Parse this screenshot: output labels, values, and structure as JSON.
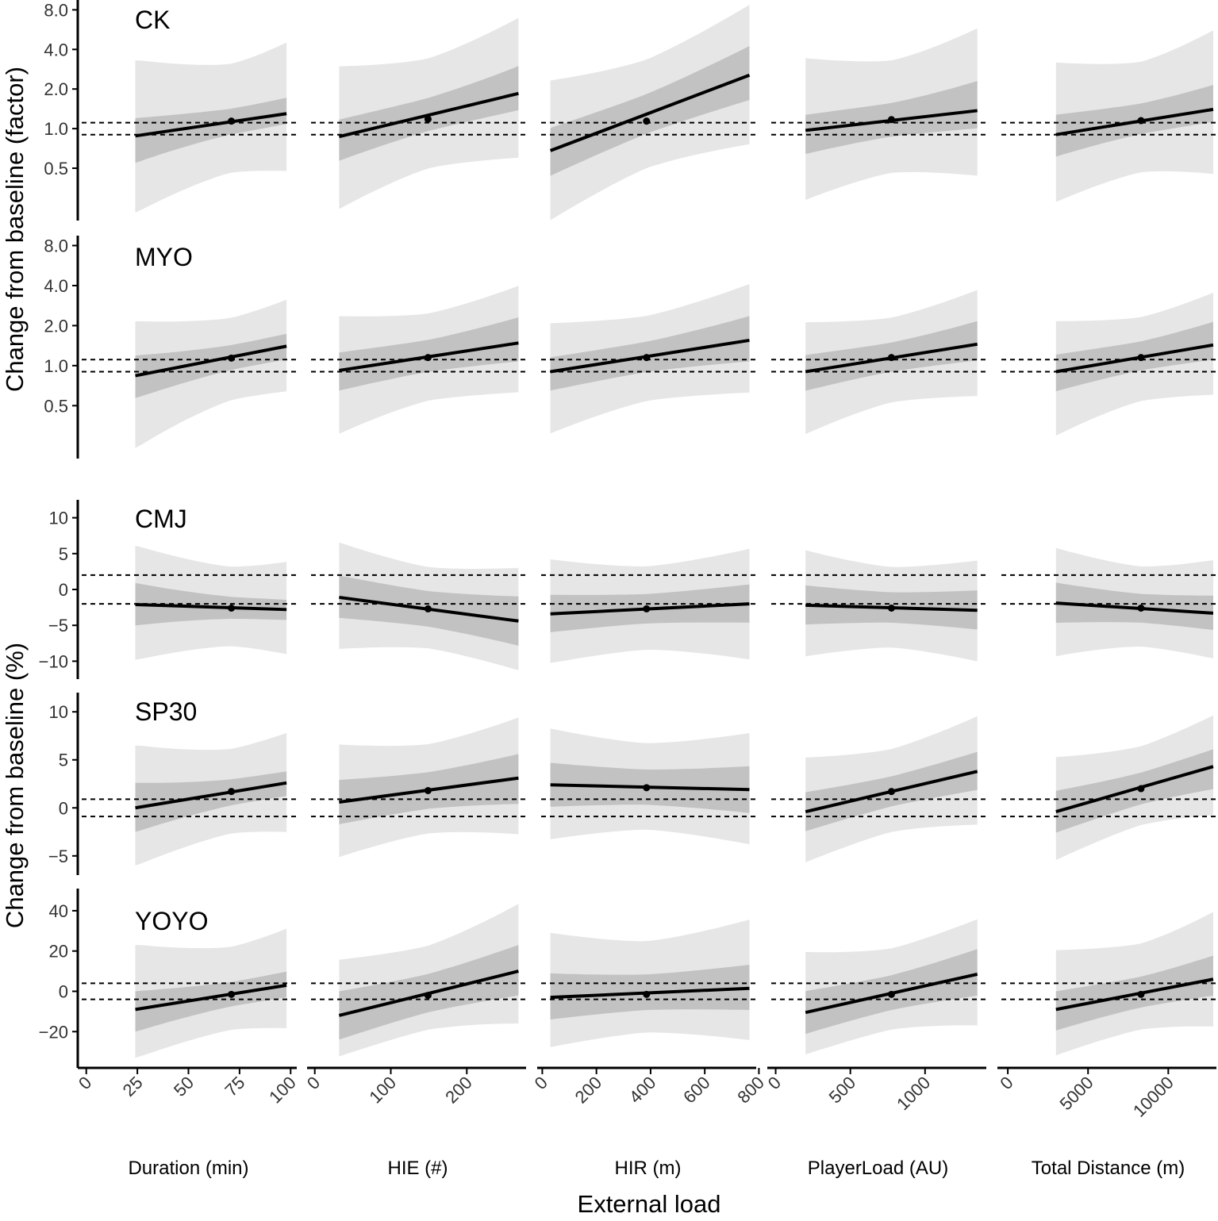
{
  "chart_data": {
    "type": "line",
    "layout": "faceted grid, 5 rows x 5 columns, shared y within row, shared x within column",
    "xlabel": "External load",
    "ylabel_groups": [
      {
        "label": "Change from baseline (factor)",
        "rows": [
          "CK",
          "MYO"
        ]
      },
      {
        "label": "Change from baseline (%)",
        "rows": [
          "CMJ",
          "SP30",
          "YOYO"
        ]
      }
    ],
    "columns": [
      {
        "label": "Duration (min)",
        "xlim": [
          -3,
          103
        ],
        "ticks": [
          0,
          25,
          50,
          75,
          100
        ],
        "tick_labels": [
          "0",
          "25",
          "50",
          "75",
          "100"
        ],
        "x_range": [
          24,
          98
        ],
        "x_point": 71
      },
      {
        "label": "HIE (#)",
        "xlim": [
          -7,
          278
        ],
        "ticks": [
          0,
          100,
          200
        ],
        "tick_labels": [
          "0",
          "100",
          "200"
        ],
        "x_range": [
          32,
          268
        ],
        "x_point": 149
      },
      {
        "label": "HIR (m)",
        "xlim": [
          -10,
          790
        ],
        "ticks": [
          0,
          200,
          400,
          600,
          800
        ],
        "tick_labels": [
          "0",
          "200",
          "400",
          "600",
          "800"
        ],
        "x_range": [
          30,
          765
        ],
        "x_point": 385
      },
      {
        "label": "PlayerLoad (AU)",
        "xlim": [
          -40,
          1410
        ],
        "ticks": [
          0,
          500,
          1000
        ],
        "tick_labels": [
          "0",
          "500",
          "1000"
        ],
        "x_range": [
          200,
          1350
        ],
        "x_point": 775
      },
      {
        "label": "Total Distance (m)",
        "xlim": [
          -500,
          13000
        ],
        "ticks": [
          0,
          5000,
          10000
        ],
        "tick_labels": [
          "0",
          "5000",
          "10000"
        ],
        "x_range": [
          3000,
          12800
        ],
        "x_point": 8300
      }
    ],
    "rows": [
      {
        "label": "CK",
        "scale": "log",
        "ylim": [
          0.2,
          9.5
        ],
        "ticks": [
          0.5,
          1.0,
          2.0,
          4.0,
          8.0
        ],
        "tick_labels": [
          "0.5",
          "1.0",
          "2.0",
          "4.0",
          "8.0"
        ],
        "reference_lines": [
          0.9,
          1.11
        ],
        "series": [
          {
            "column": "Duration (min)",
            "y_start": 0.88,
            "y_end": 1.3,
            "y_point": 1.14,
            "inner_start": [
              0.55,
              1.2
            ],
            "inner_end": [
              1.05,
              1.8
            ],
            "outer_start": [
              0.23,
              3.3
            ],
            "outer_end": [
              0.4,
              5.6
            ]
          },
          {
            "column": "HIE (#)",
            "y_start": 0.87,
            "y_end": 1.85,
            "y_point": 1.18,
            "inner_start": [
              0.55,
              1.2
            ],
            "inner_end": [
              1.35,
              3.1
            ],
            "outer_start": [
              0.22,
              3.3
            ],
            "outer_end": [
              0.55,
              7.7
            ]
          },
          {
            "column": "HIR (m)",
            "y_start": 0.68,
            "y_end": 2.55,
            "y_point": 1.14,
            "inner_start": [
              0.42,
              1.05
            ],
            "inner_end": [
              1.6,
              4.4
            ],
            "outer_start": [
              0.18,
              2.6
            ],
            "outer_end": [
              0.7,
              9.5
            ]
          },
          {
            "column": "PlayerLoad (AU)",
            "y_start": 0.97,
            "y_end": 1.37,
            "y_point": 1.17,
            "inner_start": [
              0.62,
              1.3
            ],
            "inner_end": [
              0.98,
              2.4
            ],
            "outer_start": [
              0.26,
              3.8
            ],
            "outer_end": [
              0.4,
              6.5
            ]
          },
          {
            "column": "Total Distance (m)",
            "y_start": 0.9,
            "y_end": 1.4,
            "y_point": 1.15,
            "inner_start": [
              0.6,
              1.3
            ],
            "inner_end": [
              1.1,
              2.25
            ],
            "outer_start": [
              0.26,
              3.4
            ],
            "outer_end": [
              0.4,
              6.5
            ]
          }
        ]
      },
      {
        "label": "MYO",
        "scale": "log",
        "ylim": [
          0.2,
          9.5
        ],
        "ticks": [
          0.5,
          1.0,
          2.0,
          4.0,
          8.0
        ],
        "tick_labels": [
          "0.5",
          "1.0",
          "2.0",
          "4.0",
          "8.0"
        ],
        "reference_lines": [
          0.9,
          1.11
        ],
        "series": [
          {
            "column": "Duration (min)",
            "y_start": 0.84,
            "y_end": 1.4,
            "y_point": 1.14,
            "inner_start": [
              0.57,
              1.19
            ],
            "inner_end": [
              1.07,
              1.8
            ],
            "outer_start": [
              0.24,
              2.15
            ],
            "outer_end": [
              0.56,
              3.6
            ]
          },
          {
            "column": "HIE (#)",
            "y_start": 0.92,
            "y_end": 1.48,
            "y_point": 1.15,
            "inner_start": [
              0.63,
              1.29
            ],
            "inner_end": [
              1.05,
              2.39
            ],
            "outer_start": [
              0.28,
              2.55
            ],
            "outer_end": [
              0.59,
              4.3
            ]
          },
          {
            "column": "HIR (m)",
            "y_start": 0.9,
            "y_end": 1.55,
            "y_point": 1.15,
            "inner_start": [
              0.63,
              1.18
            ],
            "inner_end": [
              1.05,
              2.43
            ],
            "outer_start": [
              0.28,
              2.25
            ],
            "outer_end": [
              0.59,
              4.4
            ]
          },
          {
            "column": "PlayerLoad (AU)",
            "y_start": 0.9,
            "y_end": 1.45,
            "y_point": 1.15,
            "inner_start": [
              0.63,
              1.23
            ],
            "inner_end": [
              1.07,
              2.23
            ],
            "outer_start": [
              0.28,
              2.27
            ],
            "outer_end": [
              0.55,
              4.0
            ]
          },
          {
            "column": "Total Distance (m)",
            "y_start": 0.9,
            "y_end": 1.43,
            "y_point": 1.15,
            "inner_start": [
              0.63,
              1.23
            ],
            "inner_end": [
              1.08,
              2.23
            ],
            "outer_start": [
              0.28,
              2.27
            ],
            "outer_end": [
              0.55,
              3.9
            ]
          }
        ]
      },
      {
        "label": "CMJ",
        "scale": "linear",
        "ylim": [
          -12.5,
          12.5
        ],
        "ticks": [
          -10,
          -5,
          0,
          5,
          10
        ],
        "tick_labels": [
          "−10",
          "−5",
          "0",
          "5",
          "10"
        ],
        "reference_lines": [
          -2,
          2
        ],
        "series": [
          {
            "column": "Duration (min)",
            "y_start": -2.1,
            "y_end": -2.8,
            "y_point": -2.6,
            "inner_start": [
              -5.0,
              0.9
            ],
            "inner_end": [
              -4.5,
              -1.2
            ],
            "outer_start": [
              -9.8,
              6.1
            ],
            "outer_end": [
              -10.1,
              5.0
            ]
          },
          {
            "column": "HIE (#)",
            "y_start": -1.1,
            "y_end": -4.4,
            "y_point": -2.7,
            "inner_start": [
              -4.2,
              2.2
            ],
            "inner_end": [
              -8.1,
              -0.7
            ],
            "outer_start": [
              -8.9,
              7.2
            ],
            "outer_end": [
              -11.8,
              3.6
            ]
          },
          {
            "column": "HIR (m)",
            "y_start": -3.4,
            "y_end": -2.0,
            "y_point": -2.7,
            "inner_start": [
              -6.2,
              -0.5
            ],
            "inner_end": [
              -4.8,
              0.9
            ],
            "outer_start": [
              -10.9,
              4.9
            ],
            "outer_end": [
              -10.3,
              6.2
            ]
          },
          {
            "column": "PlayerLoad (AU)",
            "y_start": -2.2,
            "y_end": -2.9,
            "y_point": -2.6,
            "inner_start": [
              -5.1,
              0.8
            ],
            "inner_end": [
              -5.8,
              0.1
            ],
            "outer_start": [
              -9.9,
              6.1
            ],
            "outer_end": [
              -10.6,
              4.6
            ]
          },
          {
            "column": "Total Distance (m)",
            "y_start": -1.9,
            "y_end": -3.3,
            "y_point": -2.6,
            "inner_start": [
              -4.8,
              1.1
            ],
            "inner_end": [
              -5.9,
              -0.6
            ],
            "outer_start": [
              -9.7,
              6.2
            ],
            "outer_end": [
              -10.3,
              4.9
            ]
          }
        ]
      },
      {
        "label": "SP30",
        "scale": "linear",
        "ylim": [
          -7,
          12
        ],
        "ticks": [
          -5,
          0,
          5,
          10
        ],
        "tick_labels": [
          "−5",
          "0",
          "5",
          "10"
        ],
        "reference_lines": [
          -0.9,
          0.9
        ],
        "series": [
          {
            "column": "Duration (min)",
            "y_start": 0.0,
            "y_end": 2.6,
            "y_point": 1.7,
            "inner_start": [
              -2.5,
              2.6
            ],
            "inner_end": [
              1.0,
              4.0
            ],
            "outer_start": [
              -6.0,
              6.5
            ],
            "outer_end": [
              -3.4,
              8.7
            ]
          },
          {
            "column": "HIE (#)",
            "y_start": 0.6,
            "y_end": 3.1,
            "y_point": 1.8,
            "inner_start": [
              -1.9,
              3.1
            ],
            "inner_end": [
              0.2,
              5.8
            ],
            "outer_start": [
              -5.6,
              7.1
            ],
            "outer_end": [
              -3.2,
              9.9
            ]
          },
          {
            "column": "HIR (m)",
            "y_start": 2.4,
            "y_end": 1.9,
            "y_point": 2.1,
            "inner_start": [
              -0.1,
              4.9
            ],
            "inner_end": [
              -0.7,
              4.5
            ],
            "outer_start": [
              -3.8,
              8.8
            ],
            "outer_end": [
              -4.2,
              8.2
            ]
          },
          {
            "column": "PlayerLoad (AU)",
            "y_start": -0.4,
            "y_end": 3.8,
            "y_point": 1.7,
            "inner_start": [
              -2.6,
              1.8
            ],
            "inner_end": [
              1.7,
              6.0
            ],
            "outer_start": [
              -6.1,
              5.7
            ],
            "outer_end": [
              -2.2,
              10.0
            ]
          },
          {
            "column": "Total Distance (m)",
            "y_start": -0.4,
            "y_end": 4.3,
            "y_point": 2.0,
            "inner_start": [
              -2.7,
              1.9
            ],
            "inner_end": [
              1.7,
              6.3
            ],
            "outer_start": [
              -5.7,
              5.6
            ],
            "outer_end": [
              -1.3,
              10.2
            ]
          }
        ]
      },
      {
        "label": "YOYO",
        "scale": "linear",
        "ylim": [
          -38,
          51
        ],
        "ticks": [
          -20,
          0,
          20,
          40
        ],
        "tick_labels": [
          "−20",
          "0",
          "20",
          "40"
        ],
        "reference_lines": [
          -4,
          4
        ],
        "series": [
          {
            "column": "Duration (min)",
            "y_start": -9.0,
            "y_end": 3.0,
            "y_point": -1.5,
            "inner_start": [
              -20.0,
              0.0
            ],
            "inner_end": [
              -4.0,
              11.0
            ],
            "outer_start": [
              -33.0,
              23.0
            ],
            "outer_end": [
              -22.0,
              36.0
            ]
          },
          {
            "column": "HIE (#)",
            "y_start": -12.0,
            "y_end": 10.0,
            "y_point": -2.0,
            "inner_start": [
              -25.0,
              1.0
            ],
            "inner_end": [
              -3.0,
              24.0
            ],
            "outer_start": [
              -34.0,
              18.0
            ],
            "outer_end": [
              -18.0,
              46.0
            ]
          },
          {
            "column": "HIR (m)",
            "y_start": -3.0,
            "y_end": 1.5,
            "y_point": -1.5,
            "inner_start": [
              -15.0,
              10.0
            ],
            "inner_end": [
              -10.0,
              14.0
            ],
            "outer_start": [
              -30.0,
              32.0
            ],
            "outer_end": [
              -26.0,
              38.0
            ]
          },
          {
            "column": "PlayerLoad (AU)",
            "y_start": -10.5,
            "y_end": 8.5,
            "y_point": -1.5,
            "inner_start": [
              -22.0,
              1.0
            ],
            "inner_end": [
              -3.0,
              22.0
            ],
            "outer_start": [
              -33.0,
              22.0
            ],
            "outer_end": [
              -19.0,
              38.0
            ]
          },
          {
            "column": "Total Distance (m)",
            "y_start": -9.0,
            "y_end": 6.0,
            "y_point": -1.5,
            "inner_start": [
              -20.0,
              0.5
            ],
            "inner_end": [
              -3.0,
              19.0
            ],
            "outer_start": [
              -33.0,
              22.0
            ],
            "outer_end": [
              -20.0,
              43.0
            ]
          }
        ]
      }
    ]
  }
}
